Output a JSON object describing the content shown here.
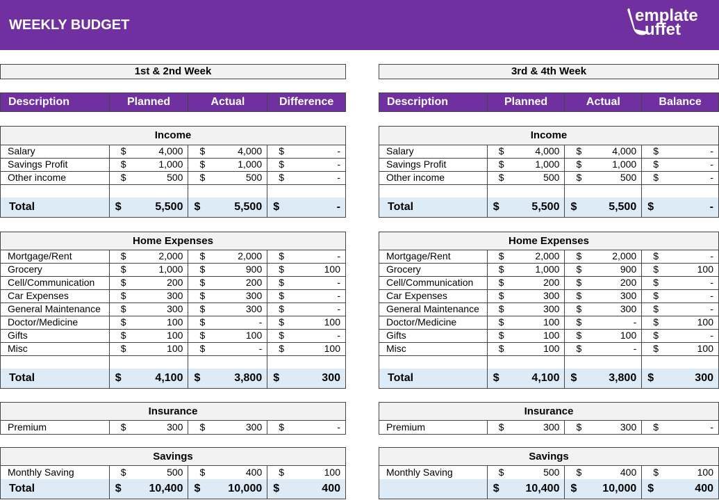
{
  "header": {
    "title": "WEEKLY BUDGET",
    "logo_text": "TemplateBuffet",
    "logo_line1": "emplate",
    "logo_line2": "uffet",
    "color": "#7030a0"
  },
  "panels": [
    {
      "week": "1st & 2nd Week",
      "columns": [
        "Description",
        "Planned",
        "Actual",
        "Difference"
      ],
      "sections": [
        {
          "title": "Income",
          "rows": [
            [
              "Salary",
              "4,000",
              "4,000",
              "-"
            ],
            [
              "Savings Profit",
              "1,000",
              "1,000",
              "-"
            ],
            [
              "Other income",
              "500",
              "500",
              "-"
            ],
            [
              "",
              "",
              "",
              ""
            ]
          ],
          "total": [
            "Total",
            "5,500",
            "5,500",
            "-"
          ]
        },
        {
          "title": "Home Expenses",
          "rows": [
            [
              "Mortgage/Rent",
              "2,000",
              "2,000",
              "-"
            ],
            [
              "Grocery",
              "1,000",
              "900",
              "100"
            ],
            [
              "Cell/Communication",
              "200",
              "200",
              "-"
            ],
            [
              "Car Expenses",
              "300",
              "300",
              "-"
            ],
            [
              "General Maintenance",
              "300",
              "300",
              "-"
            ],
            [
              "Doctor/Medicine",
              "100",
              "-",
              "100"
            ],
            [
              "Gifts",
              "100",
              "100",
              "-"
            ],
            [
              "Misc",
              "100",
              "-",
              "100"
            ],
            [
              "",
              "",
              "",
              ""
            ]
          ],
          "total": [
            "Total",
            "4,100",
            "3,800",
            "300"
          ]
        },
        {
          "title": "Insurance",
          "rows": [
            [
              "Premium",
              "300",
              "300",
              "-"
            ]
          ]
        },
        {
          "title": "Savings",
          "rows": [
            [
              "Monthly Saving",
              "500",
              "400",
              "100"
            ]
          ],
          "total": [
            "Total",
            "10,400",
            "10,000",
            "400"
          ]
        }
      ]
    },
    {
      "week": "3rd & 4th Week",
      "columns": [
        "Description",
        "Planned",
        "Actual",
        "Balance"
      ],
      "sections": [
        {
          "title": "Income",
          "rows": [
            [
              "Salary",
              "4,000",
              "4,000",
              "-"
            ],
            [
              "Savings Profit",
              "1,000",
              "1,000",
              "-"
            ],
            [
              "Other income",
              "500",
              "500",
              "-"
            ],
            [
              "",
              "",
              "",
              ""
            ]
          ],
          "total": [
            "Total",
            "5,500",
            "5,500",
            "-"
          ]
        },
        {
          "title": "Home Expenses",
          "rows": [
            [
              "Mortgage/Rent",
              "2,000",
              "2,000",
              "-"
            ],
            [
              "Grocery",
              "1,000",
              "900",
              "100"
            ],
            [
              "Cell/Communication",
              "200",
              "200",
              "-"
            ],
            [
              "Car Expenses",
              "300",
              "300",
              "-"
            ],
            [
              "General Maintenance",
              "300",
              "300",
              "-"
            ],
            [
              "Doctor/Medicine",
              "100",
              "-",
              "100"
            ],
            [
              "Gifts",
              "100",
              "100",
              "-"
            ],
            [
              "Misc",
              "100",
              "-",
              "100"
            ],
            [
              "",
              "",
              "",
              ""
            ]
          ],
          "total": [
            "Total",
            "4,100",
            "3,800",
            "300"
          ]
        },
        {
          "title": "Insurance",
          "rows": [
            [
              "Premium",
              "300",
              "300",
              "-"
            ]
          ]
        },
        {
          "title": "Savings",
          "rows": [
            [
              "Monthly Saving",
              "500",
              "400",
              "100"
            ]
          ],
          "total": [
            "",
            "10,400",
            "10,000",
            "400"
          ]
        }
      ]
    }
  ],
  "currency_symbol": "$"
}
